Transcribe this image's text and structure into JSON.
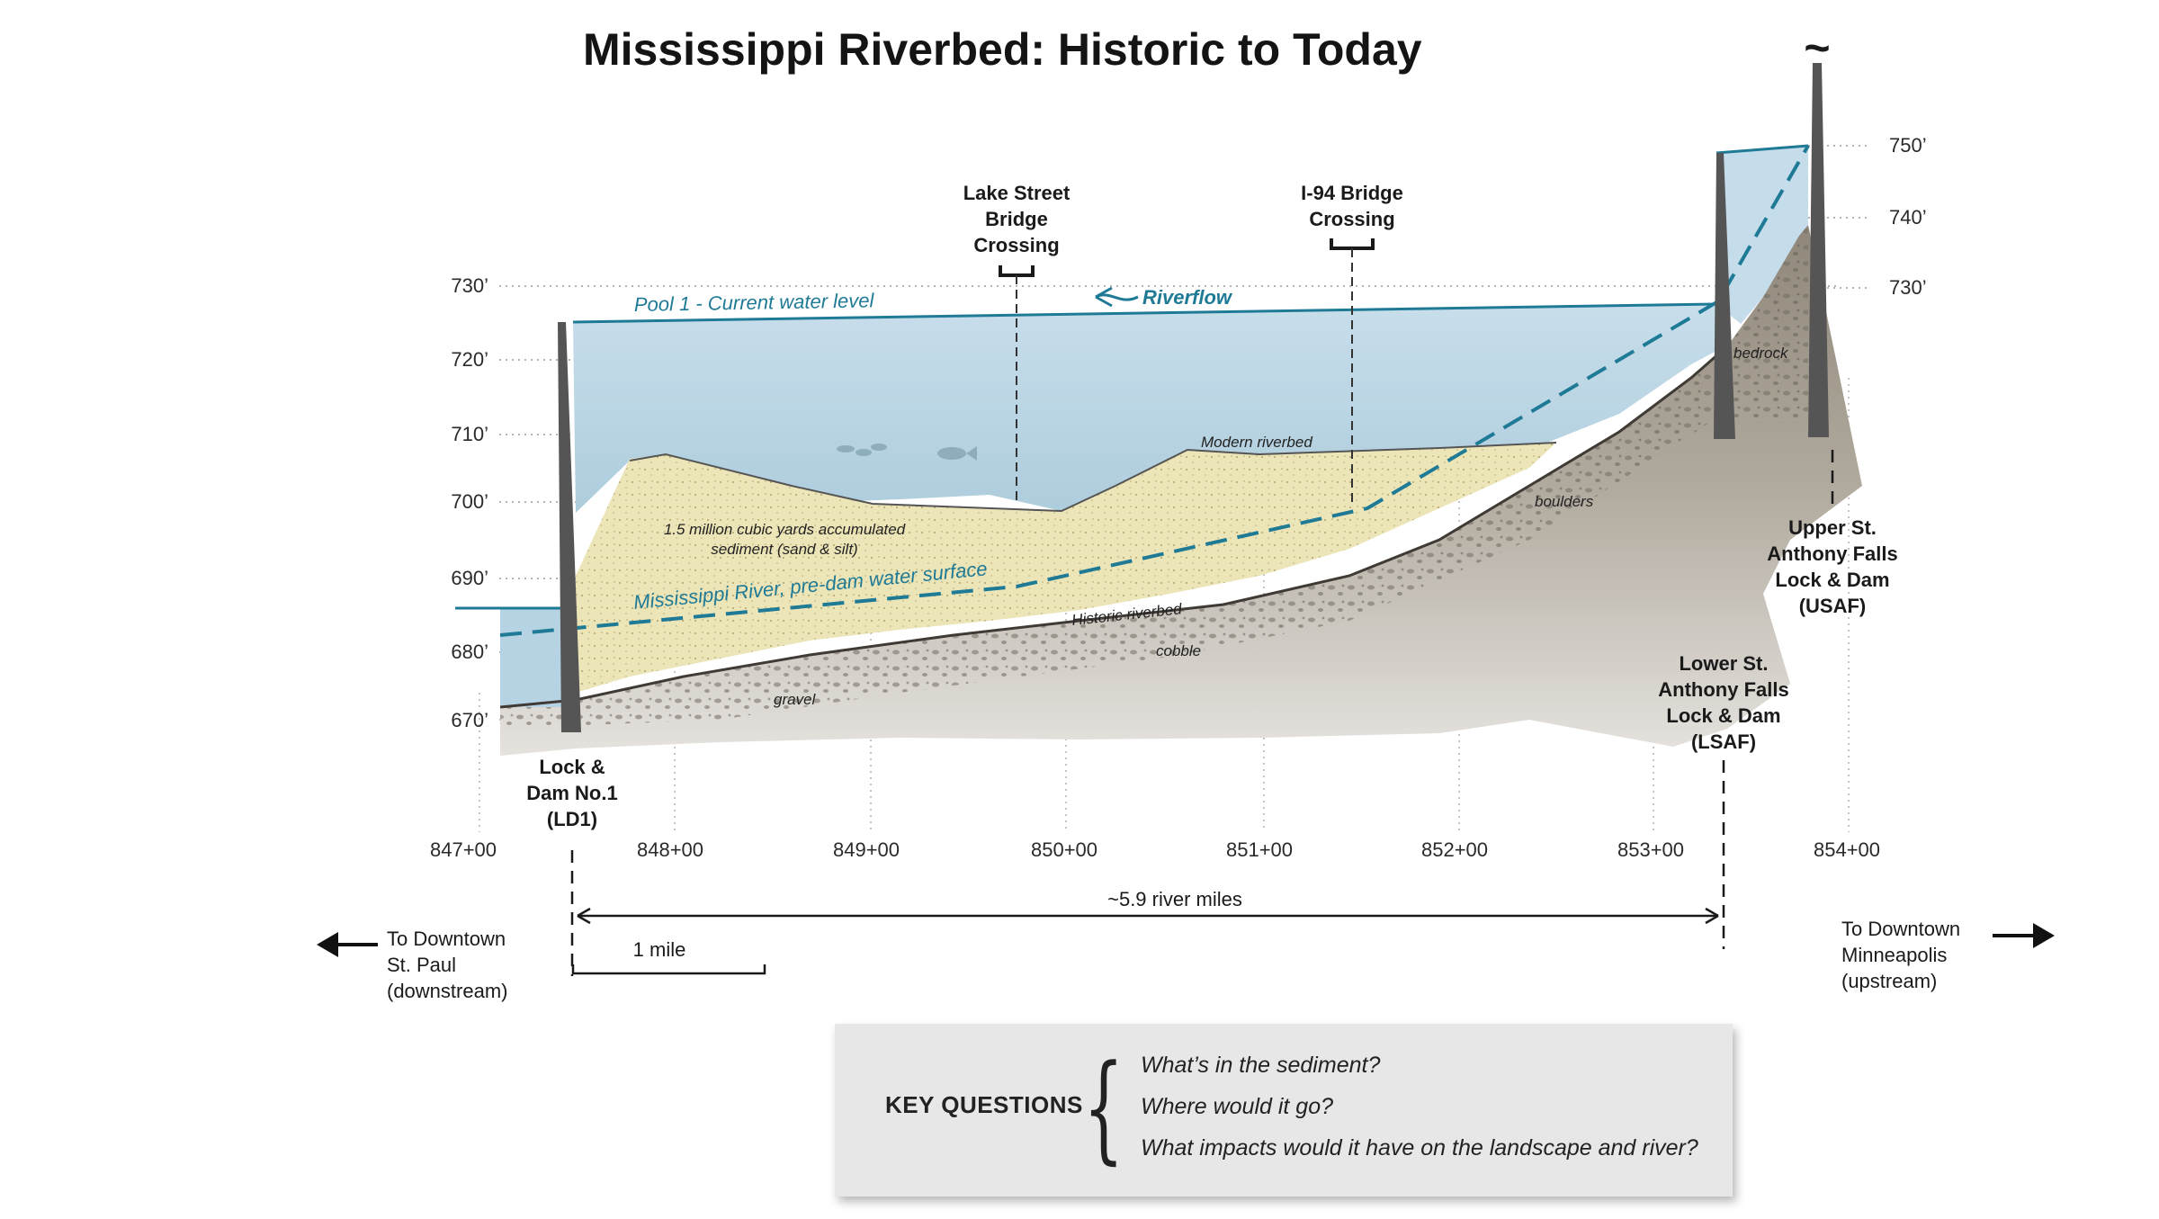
{
  "title": "Mississippi Riverbed: Historic to Today",
  "colors": {
    "water": "#b9d6e4",
    "sediment": "#ece5b8",
    "bedrock": "#9b9488",
    "line_blue": "#1f7a96",
    "dam": "#555555"
  },
  "elevation_ticks": [
    "670’",
    "680’",
    "690’",
    "700’",
    "710’",
    "720’",
    "730’"
  ],
  "right_elevation_ticks": [
    "730’",
    "740’",
    "750’"
  ],
  "station_ticks": [
    "847+00",
    "848+00",
    "849+00",
    "850+00",
    "851+00",
    "852+00",
    "853+00",
    "854+00"
  ],
  "labels": {
    "pool": "Pool 1 - Current water level",
    "riverflow": "Riverflow",
    "predam": "Mississippi River, pre-dam water surface",
    "modern": "Modern riverbed",
    "historic": "Historic riverbed",
    "sediment_1": "1.5 million cubic yards accumulated",
    "sediment_2": "sediment (sand & silt)",
    "bedrock": "bedrock",
    "boulders": "boulders",
    "cobble": "cobble",
    "gravel": "gravel"
  },
  "bridges": {
    "lake_street": [
      "Lake Street",
      "Bridge",
      "Crossing"
    ],
    "i94": [
      "I-94 Bridge",
      "Crossing"
    ]
  },
  "dams": {
    "ld1": [
      "Lock &",
      "Dam No.1",
      "(LD1)"
    ],
    "lsaf": [
      "Lower St.",
      "Anthony Falls",
      "Lock & Dam",
      "(LSAF)"
    ],
    "usaf": [
      "Upper St.",
      "Anthony Falls",
      "Lock & Dam",
      "(USAF)"
    ]
  },
  "distance_label": "~5.9 river miles",
  "scale_label": "1 mile",
  "tilde": "~",
  "nav": {
    "left": [
      "To Downtown",
      "St. Paul",
      "(downstream)"
    ],
    "right": [
      "To Downtown",
      "Minneapolis",
      "(upstream)"
    ]
  },
  "key": {
    "heading": "KEY QUESTIONS",
    "brace": "{",
    "questions": [
      "What’s in the sediment?",
      "Where would it go?",
      "What impacts would it have on the landscape and river?"
    ]
  }
}
